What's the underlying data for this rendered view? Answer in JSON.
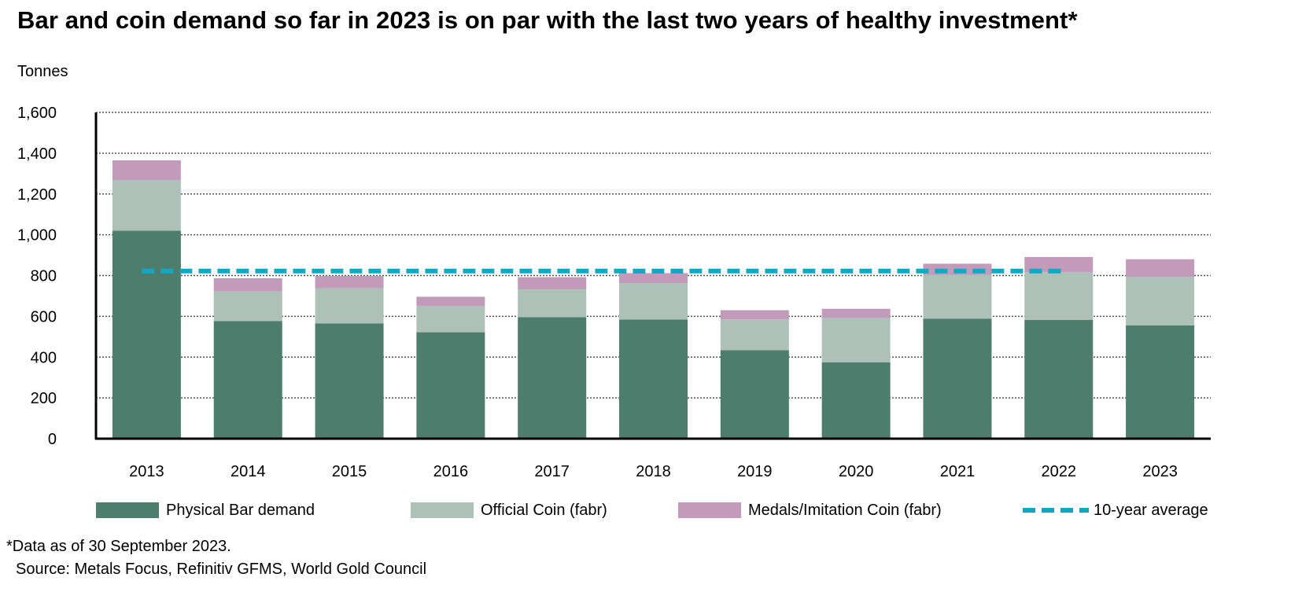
{
  "title": "Bar and coin demand so far in 2023 is on par with the last two years of healthy investment*",
  "footnote": "*Data as of 30 September 2023.",
  "source": "Source: Metals Focus, Refinitiv GFMS, World Gold Council",
  "colors": {
    "bar": "#4e7d6d",
    "coin": "#adc1b9",
    "medals": "#c29bba",
    "average": "#10a8c4"
  },
  "chart_data": {
    "type": "bar",
    "stacked": true,
    "title": "Bar and coin demand so far in 2023 is on par with the last two years of healthy investment*",
    "ylabel": "Tonnes",
    "ylim": [
      0,
      1600
    ],
    "yticks": [
      0,
      200,
      400,
      600,
      800,
      1000,
      1200,
      1400,
      1600
    ],
    "ytick_labels": [
      "0",
      "200",
      "400",
      "600",
      "800",
      "1,000",
      "1,200",
      "1,400",
      "1,600"
    ],
    "grid": "horizontal dotted",
    "legend_position": "bottom",
    "categories": [
      "2013",
      "2014",
      "2015",
      "2016",
      "2017",
      "2018",
      "2019",
      "2020",
      "2021",
      "2022",
      "2023"
    ],
    "series": [
      {
        "name": "Physical Bar demand",
        "values": [
          1020,
          577,
          565,
          522,
          596,
          584,
          434,
          374,
          588,
          583,
          556
        ]
      },
      {
        "name": "Official Coin (fabr)",
        "values": [
          248,
          145,
          173,
          129,
          136,
          178,
          151,
          218,
          215,
          233,
          237
        ]
      },
      {
        "name": "Medals/Imitation Coin (fabr)",
        "values": [
          97,
          65,
          60,
          45,
          60,
          50,
          45,
          45,
          55,
          75,
          87
        ]
      }
    ],
    "lines": [
      {
        "name": "10-year average",
        "style": "dashed",
        "x_range": [
          "2013",
          "2022"
        ],
        "value": 822
      }
    ]
  }
}
